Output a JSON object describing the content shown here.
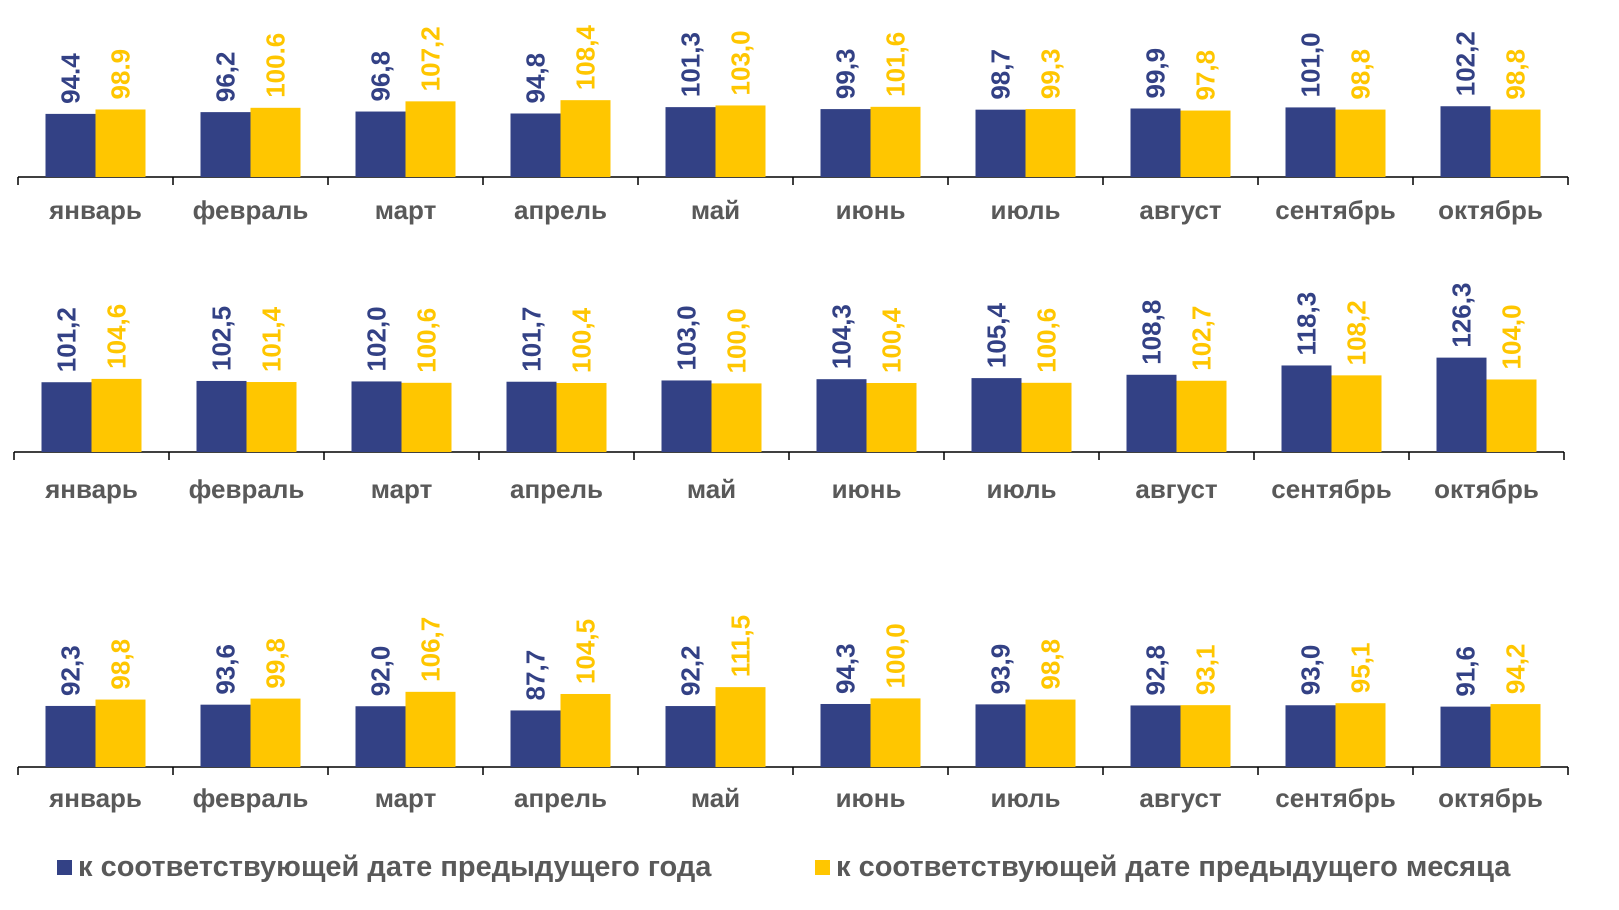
{
  "colors": {
    "series_0": "#334185",
    "series_1": "#FFC600",
    "axis": "#000000",
    "tick_label": "#595959"
  },
  "legend": {
    "items": [
      {
        "label": "к соответствующей дате предыдущего года",
        "color": "#334185"
      },
      {
        "label": "к соответствующей дате предыдущего месяца",
        "color": "#FFC600"
      }
    ]
  },
  "chart_data": [
    {
      "type": "bar",
      "categories": [
        "январь",
        "февраль",
        "март",
        "апрель",
        "май",
        "июнь",
        "июль",
        "август",
        "сентябрь",
        "октябрь"
      ],
      "series": [
        {
          "name": "к соответствующей дате предыдущего года",
          "values": [
            94.4,
            96.2,
            96.8,
            94.8,
            101.3,
            99.3,
            98.7,
            99.9,
            101.0,
            102.2
          ],
          "labels": [
            "94.4",
            "96,2",
            "96,8",
            "94,8",
            "101,3",
            "99,3",
            "98,7",
            "99,9",
            "101,0",
            "102,2"
          ]
        },
        {
          "name": "к соответствующей дате предыдущего месяца",
          "values": [
            98.9,
            100.6,
            107.2,
            108.4,
            103.0,
            101.6,
            99.3,
            97.8,
            98.8,
            98.8
          ],
          "labels": [
            "98.9",
            "100.6",
            "107,2",
            "108,4",
            "103,0",
            "101,6",
            "99,3",
            "97,8",
            "98,8",
            "98,8"
          ]
        }
      ]
    },
    {
      "type": "bar",
      "categories": [
        "январь",
        "февраль",
        "март",
        "апрель",
        "май",
        "июнь",
        "июль",
        "август",
        "сентябрь",
        "октябрь"
      ],
      "series": [
        {
          "name": "к соответствующей дате предыдущего года",
          "values": [
            101.2,
            102.5,
            102.0,
            101.7,
            103.0,
            104.3,
            105.4,
            108.8,
            118.3,
            126.3
          ],
          "labels": [
            "101,2",
            "102,5",
            "102,0",
            "101,7",
            "103,0",
            "104,3",
            "105,4",
            "108,8",
            "118,3",
            "126,3"
          ]
        },
        {
          "name": "к соответствующей дате предыдущего месяца",
          "values": [
            104.6,
            101.4,
            100.6,
            100.4,
            100.0,
            100.4,
            100.6,
            102.7,
            108.2,
            104.0
          ],
          "labels": [
            "104,6",
            "101,4",
            "100,6",
            "100,4",
            "100,0",
            "100,4",
            "100,6",
            "102,7",
            "108,2",
            "104,0"
          ]
        }
      ]
    },
    {
      "type": "bar",
      "categories": [
        "январь",
        "февраль",
        "март",
        "апрель",
        "май",
        "июнь",
        "июль",
        "август",
        "сентябрь",
        "октябрь"
      ],
      "series": [
        {
          "name": "к соответствующей дате предыдущего года",
          "values": [
            92.3,
            93.6,
            92.0,
            87.7,
            92.2,
            94.3,
            93.9,
            92.8,
            93.0,
            91.6
          ],
          "labels": [
            "92,3",
            "93,6",
            "92,0",
            "87,7",
            "92,2",
            "94,3",
            "93,9",
            "92,8",
            "93,0",
            "91,6"
          ]
        },
        {
          "name": "к соответствующей дате предыдущего месяца",
          "values": [
            98.8,
            99.8,
            106.7,
            104.5,
            111.5,
            100.0,
            98.8,
            93.1,
            95.1,
            94.2
          ],
          "labels": [
            "98,8",
            "99,8",
            "106,7",
            "104,5",
            "111,5",
            "100,0",
            "98,8",
            "93,1",
            "95,1",
            "94,2"
          ]
        }
      ]
    }
  ]
}
